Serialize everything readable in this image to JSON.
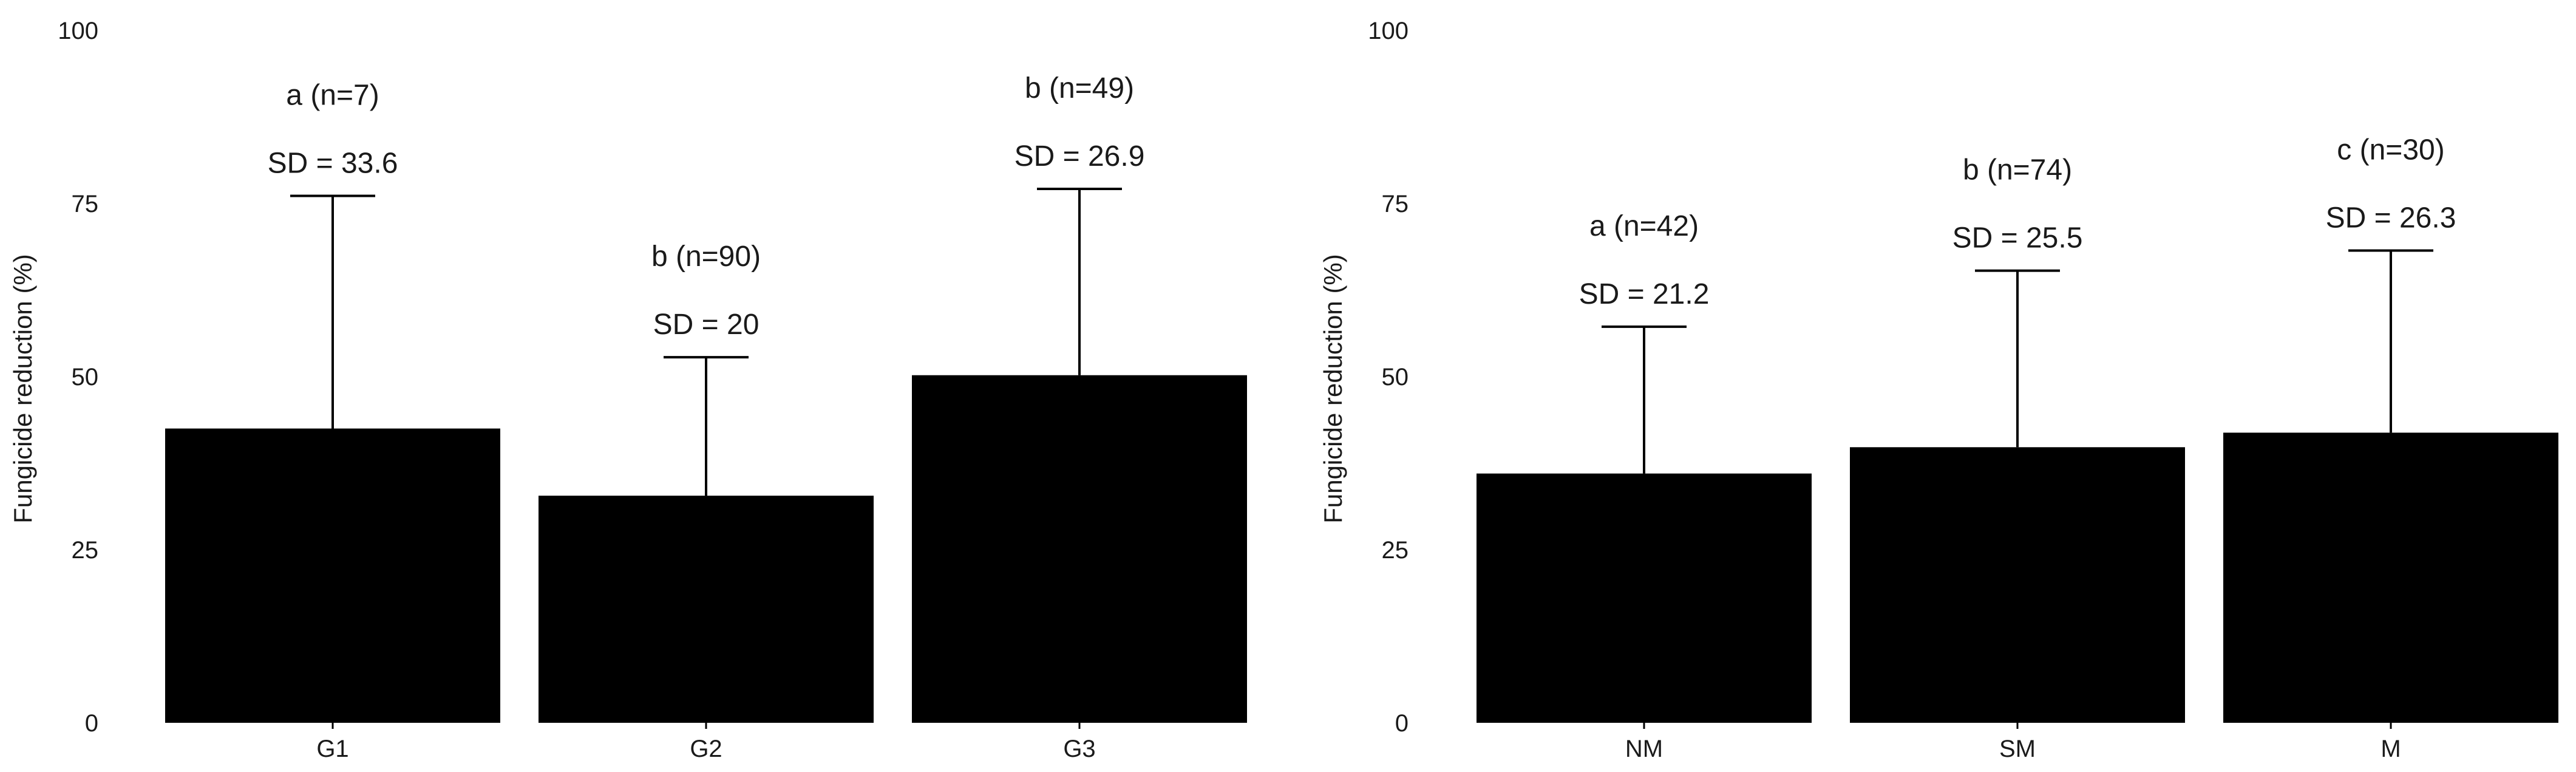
{
  "chart_data": [
    {
      "type": "bar",
      "ylabel": "Fungicide reduction (%)",
      "ylim": [
        0,
        100
      ],
      "yticks": [
        "0",
        "25",
        "50",
        "75",
        "100"
      ],
      "grid": false,
      "categories": [
        "G1",
        "G2",
        "G3"
      ],
      "values": [
        42.5,
        32.8,
        50.2
      ],
      "error_upper": [
        76.1,
        52.8,
        77.1
      ],
      "sd_labels": [
        "SD = 33.6",
        "SD = 20",
        "SD = 26.9"
      ],
      "group_labels": [
        "a (n=7)",
        "b (n=90)",
        "b (n=49)"
      ]
    },
    {
      "type": "bar",
      "ylabel": "Fungicide reduction (%)",
      "ylim": [
        0,
        100
      ],
      "yticks": [
        "0",
        "25",
        "50",
        "75",
        "100"
      ],
      "grid": false,
      "categories": [
        "NM",
        "SM",
        "M"
      ],
      "values": [
        36.0,
        39.8,
        41.9
      ],
      "error_upper": [
        57.2,
        65.3,
        68.2
      ],
      "sd_labels": [
        "SD = 21.2",
        "SD = 25.5",
        "SD = 26.3"
      ],
      "group_labels": [
        "a (n=42)",
        "b (n=74)",
        "c (n=30)"
      ]
    }
  ]
}
